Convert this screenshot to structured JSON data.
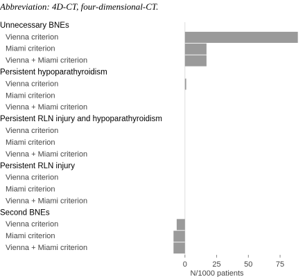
{
  "caption": "Abbreviation: 4D-CT, four-dimensional-CT.",
  "chart_data": {
    "type": "grouped-hbar",
    "xlabel": "N/1000 patients",
    "color": "#9a9a9a",
    "xlim": [
      -13,
      93
    ],
    "xticks": [
      0,
      25,
      50,
      75
    ],
    "groups": [
      {
        "name": "Unnecessary BNEs",
        "categories": [
          "Vienna criterion",
          "Miami criterion",
          "Vienna + Miami criterion"
        ],
        "values": [
          89,
          17,
          17
        ]
      },
      {
        "name": "Persistent hypoparathyroidism",
        "categories": [
          "Vienna criterion",
          "Miami criterion",
          "Vienna + Miami criterion"
        ],
        "values": [
          1,
          0,
          0
        ]
      },
      {
        "name": "Persistent RLN injury and hypoparathyroidism",
        "categories": [
          "Vienna criterion",
          "Miami criterion",
          "Vienna + Miami criterion"
        ],
        "values": [
          0,
          0,
          0
        ]
      },
      {
        "name": "Persistent RLN injury",
        "categories": [
          "Vienna criterion",
          "Miami criterion",
          "Vienna + Miami criterion"
        ],
        "values": [
          0,
          0,
          0
        ]
      },
      {
        "name": "Second BNEs",
        "categories": [
          "Vienna criterion",
          "Miami criterion",
          "Vienna + Miami criterion"
        ],
        "values": [
          -6.5,
          -9,
          -9
        ]
      }
    ]
  }
}
